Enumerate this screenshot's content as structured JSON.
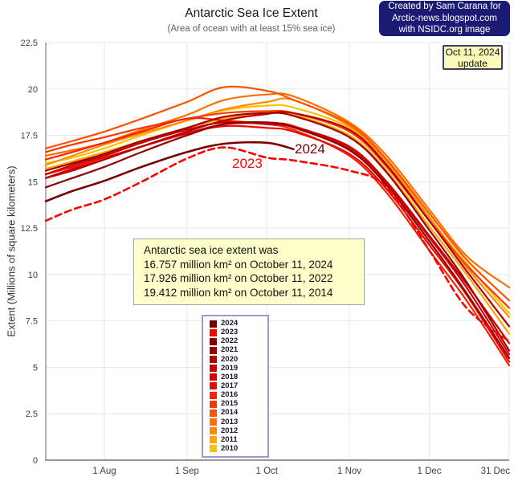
{
  "title": "Antarctic Sea Ice Extent",
  "subtitle": "(Area of ocean with at least 15% sea ice)",
  "credit_box": {
    "line1": "Created by Sam Carana for",
    "line2": "Arctic-news.blogspot.com",
    "line3": "with NSIDC.org image",
    "bg": "#1b1b75",
    "text_color": "#ffffff"
  },
  "update_box": {
    "line1": "Oct 11, 2024",
    "line2": "update",
    "bg": "#fbfbb8",
    "border_color": "#3e3e5e"
  },
  "note_box": {
    "line1": "Antarctic sea ice extent was",
    "line2": "16.757 million km² on October 11, 2024",
    "line3": "17.926 million km² on October 11, 2022",
    "line4": "19.412 million km² on October 11, 2014",
    "bg": "#ffffcc"
  },
  "line_labels": [
    {
      "text": "2024",
      "color": "#7a0000"
    },
    {
      "text": "2023",
      "color": "#ff0000"
    }
  ],
  "chart_data": {
    "type": "line",
    "title": "Antarctic Sea Ice Extent",
    "xlabel": "",
    "ylabel": "Extent (Millions of square kilometers)",
    "ylim": [
      0,
      22.5
    ],
    "y_ticks": [
      22.5,
      20,
      17.5,
      15,
      12.5,
      10,
      7.5,
      5,
      2.5,
      0
    ],
    "grid": true,
    "legend_position": "bottom-center",
    "x_axis": {
      "total_days": 174,
      "ticks": [
        {
          "label": "1 Aug",
          "day": 22
        },
        {
          "label": "1 Sep",
          "day": 53
        },
        {
          "label": "1 Oct",
          "day": 83
        },
        {
          "label": "1 Nov",
          "day": 114
        },
        {
          "label": "1 Dec",
          "day": 144
        },
        {
          "label": "31 Dec",
          "day": 174
        }
      ]
    },
    "sample_days": [
      0,
      10,
      22,
      36,
      53,
      67,
      83,
      93,
      114,
      128,
      144,
      158,
      174
    ],
    "series": [
      {
        "name": "2024",
        "color": "#7a0000",
        "dashed": false,
        "values": [
          13.95,
          14.5,
          15.05,
          15.8,
          16.6,
          17.05,
          17.1,
          16.757
        ]
      },
      {
        "name": "2023",
        "color": "#ff0000",
        "dashed": true,
        "values": [
          12.9,
          13.5,
          14.05,
          15.0,
          16.25,
          16.85,
          16.3,
          16.15,
          15.6,
          14.7,
          11.3,
          8.2,
          6.4
        ]
      },
      {
        "name": "2022",
        "color": "#8e0000",
        "dashed": false,
        "values": [
          14.7,
          15.2,
          15.8,
          16.6,
          17.5,
          18.1,
          18.2,
          17.926,
          16.7,
          14.8,
          11.8,
          9.0,
          5.5
        ]
      },
      {
        "name": "2021",
        "color": "#a00000",
        "dashed": false,
        "values": [
          15.6,
          16.0,
          16.5,
          17.2,
          17.9,
          18.5,
          18.7,
          18.55,
          17.4,
          15.5,
          12.4,
          9.6,
          5.9
        ]
      },
      {
        "name": "2020",
        "color": "#b30000",
        "dashed": false,
        "values": [
          15.2,
          15.6,
          16.2,
          16.9,
          17.7,
          18.3,
          18.65,
          18.7,
          17.8,
          15.9,
          12.9,
          10.2,
          7.2
        ]
      },
      {
        "name": "2019",
        "color": "#c60000",
        "dashed": false,
        "values": [
          15.4,
          15.9,
          16.4,
          17.1,
          17.8,
          18.2,
          18.1,
          17.95,
          16.9,
          15.0,
          12.1,
          9.5,
          6.3
        ]
      },
      {
        "name": "2018",
        "color": "#db0000",
        "dashed": false,
        "values": [
          15.2,
          15.7,
          16.2,
          16.9,
          17.6,
          18.1,
          18.15,
          18.0,
          16.8,
          14.9,
          12.0,
          9.3,
          5.7
        ]
      },
      {
        "name": "2017",
        "color": "#ef0a00",
        "dashed": false,
        "values": [
          15.4,
          15.8,
          16.3,
          16.9,
          17.6,
          18.0,
          17.9,
          17.7,
          16.5,
          14.6,
          11.6,
          8.9,
          5.3
        ]
      },
      {
        "name": "2016",
        "color": "#fb2000",
        "dashed": false,
        "values": [
          16.2,
          16.6,
          17.1,
          17.7,
          18.4,
          18.3,
          18.1,
          17.8,
          16.4,
          14.4,
          11.3,
          8.6,
          5.1
        ]
      },
      {
        "name": "2015",
        "color": "#ff3800",
        "dashed": false,
        "values": [
          16.6,
          17.0,
          17.4,
          17.9,
          18.4,
          18.7,
          18.8,
          18.7,
          17.7,
          15.8,
          12.9,
          10.5,
          8.2
        ]
      },
      {
        "name": "2014",
        "color": "#ff5200",
        "dashed": false,
        "values": [
          16.8,
          17.2,
          17.7,
          18.4,
          19.3,
          20.1,
          19.9,
          19.412,
          18.1,
          16.2,
          13.3,
          10.8,
          8.6
        ]
      },
      {
        "name": "2013",
        "color": "#ff6e00",
        "dashed": false,
        "values": [
          16.4,
          16.7,
          17.1,
          17.8,
          18.6,
          19.4,
          19.7,
          19.6,
          18.2,
          16.4,
          13.5,
          11.0,
          9.3
        ]
      },
      {
        "name": "2012",
        "color": "#ff8b00",
        "dashed": false,
        "values": [
          15.9,
          16.4,
          17.0,
          17.6,
          18.3,
          18.9,
          19.3,
          19.4,
          18.0,
          16.1,
          13.1,
          10.4,
          7.7
        ]
      },
      {
        "name": "2011",
        "color": "#ffa600",
        "dashed": false,
        "values": [
          15.7,
          16.1,
          16.6,
          17.2,
          17.9,
          18.4,
          18.7,
          18.6,
          17.5,
          15.6,
          12.6,
          10.0,
          6.8
        ]
      },
      {
        "name": "2010",
        "color": "#ffc200",
        "dashed": false,
        "values": [
          16.0,
          16.3,
          16.8,
          17.5,
          18.3,
          18.85,
          19.1,
          19.0,
          17.9,
          16.0,
          13.0,
          10.6,
          7.9
        ]
      }
    ]
  }
}
